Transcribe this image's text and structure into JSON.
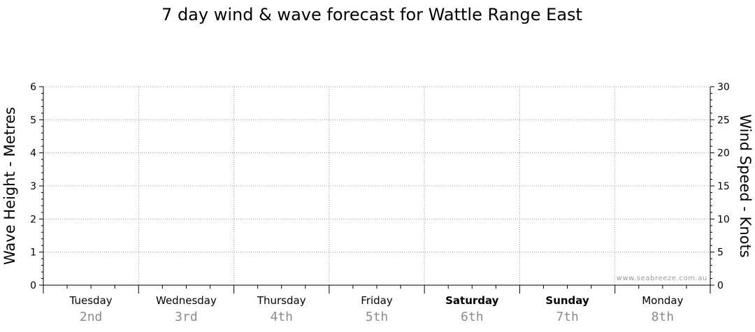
{
  "chart_data": {
    "type": "line",
    "title": "7 day wind & wave forecast for Wattle Range East",
    "y_left_label": "Wave Height - Metres",
    "y_right_label": "Wind Speed - Knots",
    "y_left_range": [
      0,
      6
    ],
    "y_left_ticks": [
      "0",
      "1",
      "2",
      "3",
      "4",
      "5",
      "6"
    ],
    "y_right_range": [
      0,
      30
    ],
    "y_right_ticks": [
      "0",
      "5",
      "10",
      "15",
      "20",
      "25",
      "30"
    ],
    "grid": true,
    "days": [
      {
        "day": "Tuesday",
        "date": "2nd",
        "weekend": false
      },
      {
        "day": "Wednesday",
        "date": "3rd",
        "weekend": false
      },
      {
        "day": "Thursday",
        "date": "4th",
        "weekend": false
      },
      {
        "day": "Friday",
        "date": "5th",
        "weekend": false
      },
      {
        "day": "Saturday",
        "date": "6th",
        "weekend": true
      },
      {
        "day": "Sunday",
        "date": "7th",
        "weekend": true
      },
      {
        "day": "Monday",
        "date": "8th",
        "weekend": false
      }
    ],
    "series": [],
    "watermark": "www.seabreeze.com.au"
  }
}
